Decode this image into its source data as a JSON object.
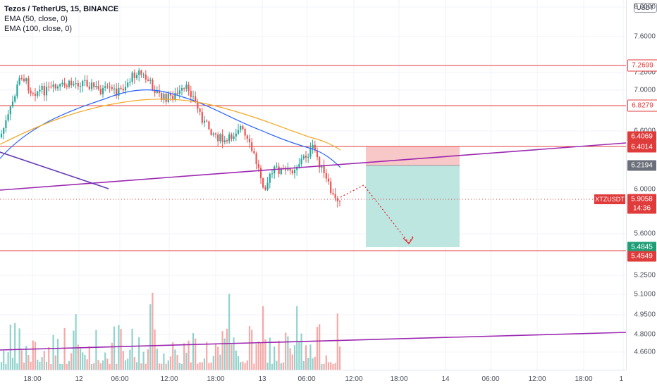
{
  "legend": {
    "title": "Tezos / TetherUS, 15, BINANCE",
    "ema50": "EMA (50, close, 0)",
    "ema100": "EMA (100, close, 0)"
  },
  "currency_button": "USDT",
  "symbol_tag": "XTZUSDT",
  "countdown": "14:36",
  "price_ticks": [
    "8.0000",
    "7.6000",
    "7.2000",
    "7.0000",
    "6.6000",
    "6.0000",
    "5.6000",
    "5.2500",
    "5.1000",
    "4.9500",
    "4.8000",
    "4.6600"
  ],
  "price_labels": [
    {
      "text": "7.2699",
      "style": "outline-red"
    },
    {
      "text": "6.8279",
      "style": "outline-red"
    },
    {
      "text": "6.4069",
      "style": "red"
    },
    {
      "text": "6.4014",
      "style": "red"
    },
    {
      "text": "6.2194",
      "style": "gray"
    },
    {
      "text": "5.9058",
      "style": "red"
    },
    {
      "text": "5.4845",
      "style": "green"
    },
    {
      "text": "5.4549",
      "style": "red"
    }
  ],
  "time_labels": [
    "18:00",
    "12",
    "06:00",
    "12:00",
    "18:00",
    "13",
    "06:00",
    "12:00",
    "18:00",
    "14",
    "06:00",
    "12:00",
    "18:00",
    "1"
  ],
  "colors": {
    "up": "#26a69a",
    "down": "#ef5350",
    "ema50": "#2962ff",
    "ema100": "#f5a623",
    "trendline": "#9c27b0",
    "hline": "#e03b3b",
    "long_risk": "#f8c7c7",
    "long_reward": "#bde6e1"
  },
  "chart_data": {
    "type": "candlestick",
    "symbol": "XTZUSDT",
    "interval": "15",
    "exchange": "BINANCE",
    "last_price": 5.9058,
    "horizontal_levels": [
      7.2699,
      6.8279,
      6.4069,
      5.4549
    ],
    "short_position": {
      "entry": 6.2194,
      "stop": 6.4014,
      "target": 5.4845
    },
    "ylim": [
      4.55,
      8.05
    ]
  }
}
